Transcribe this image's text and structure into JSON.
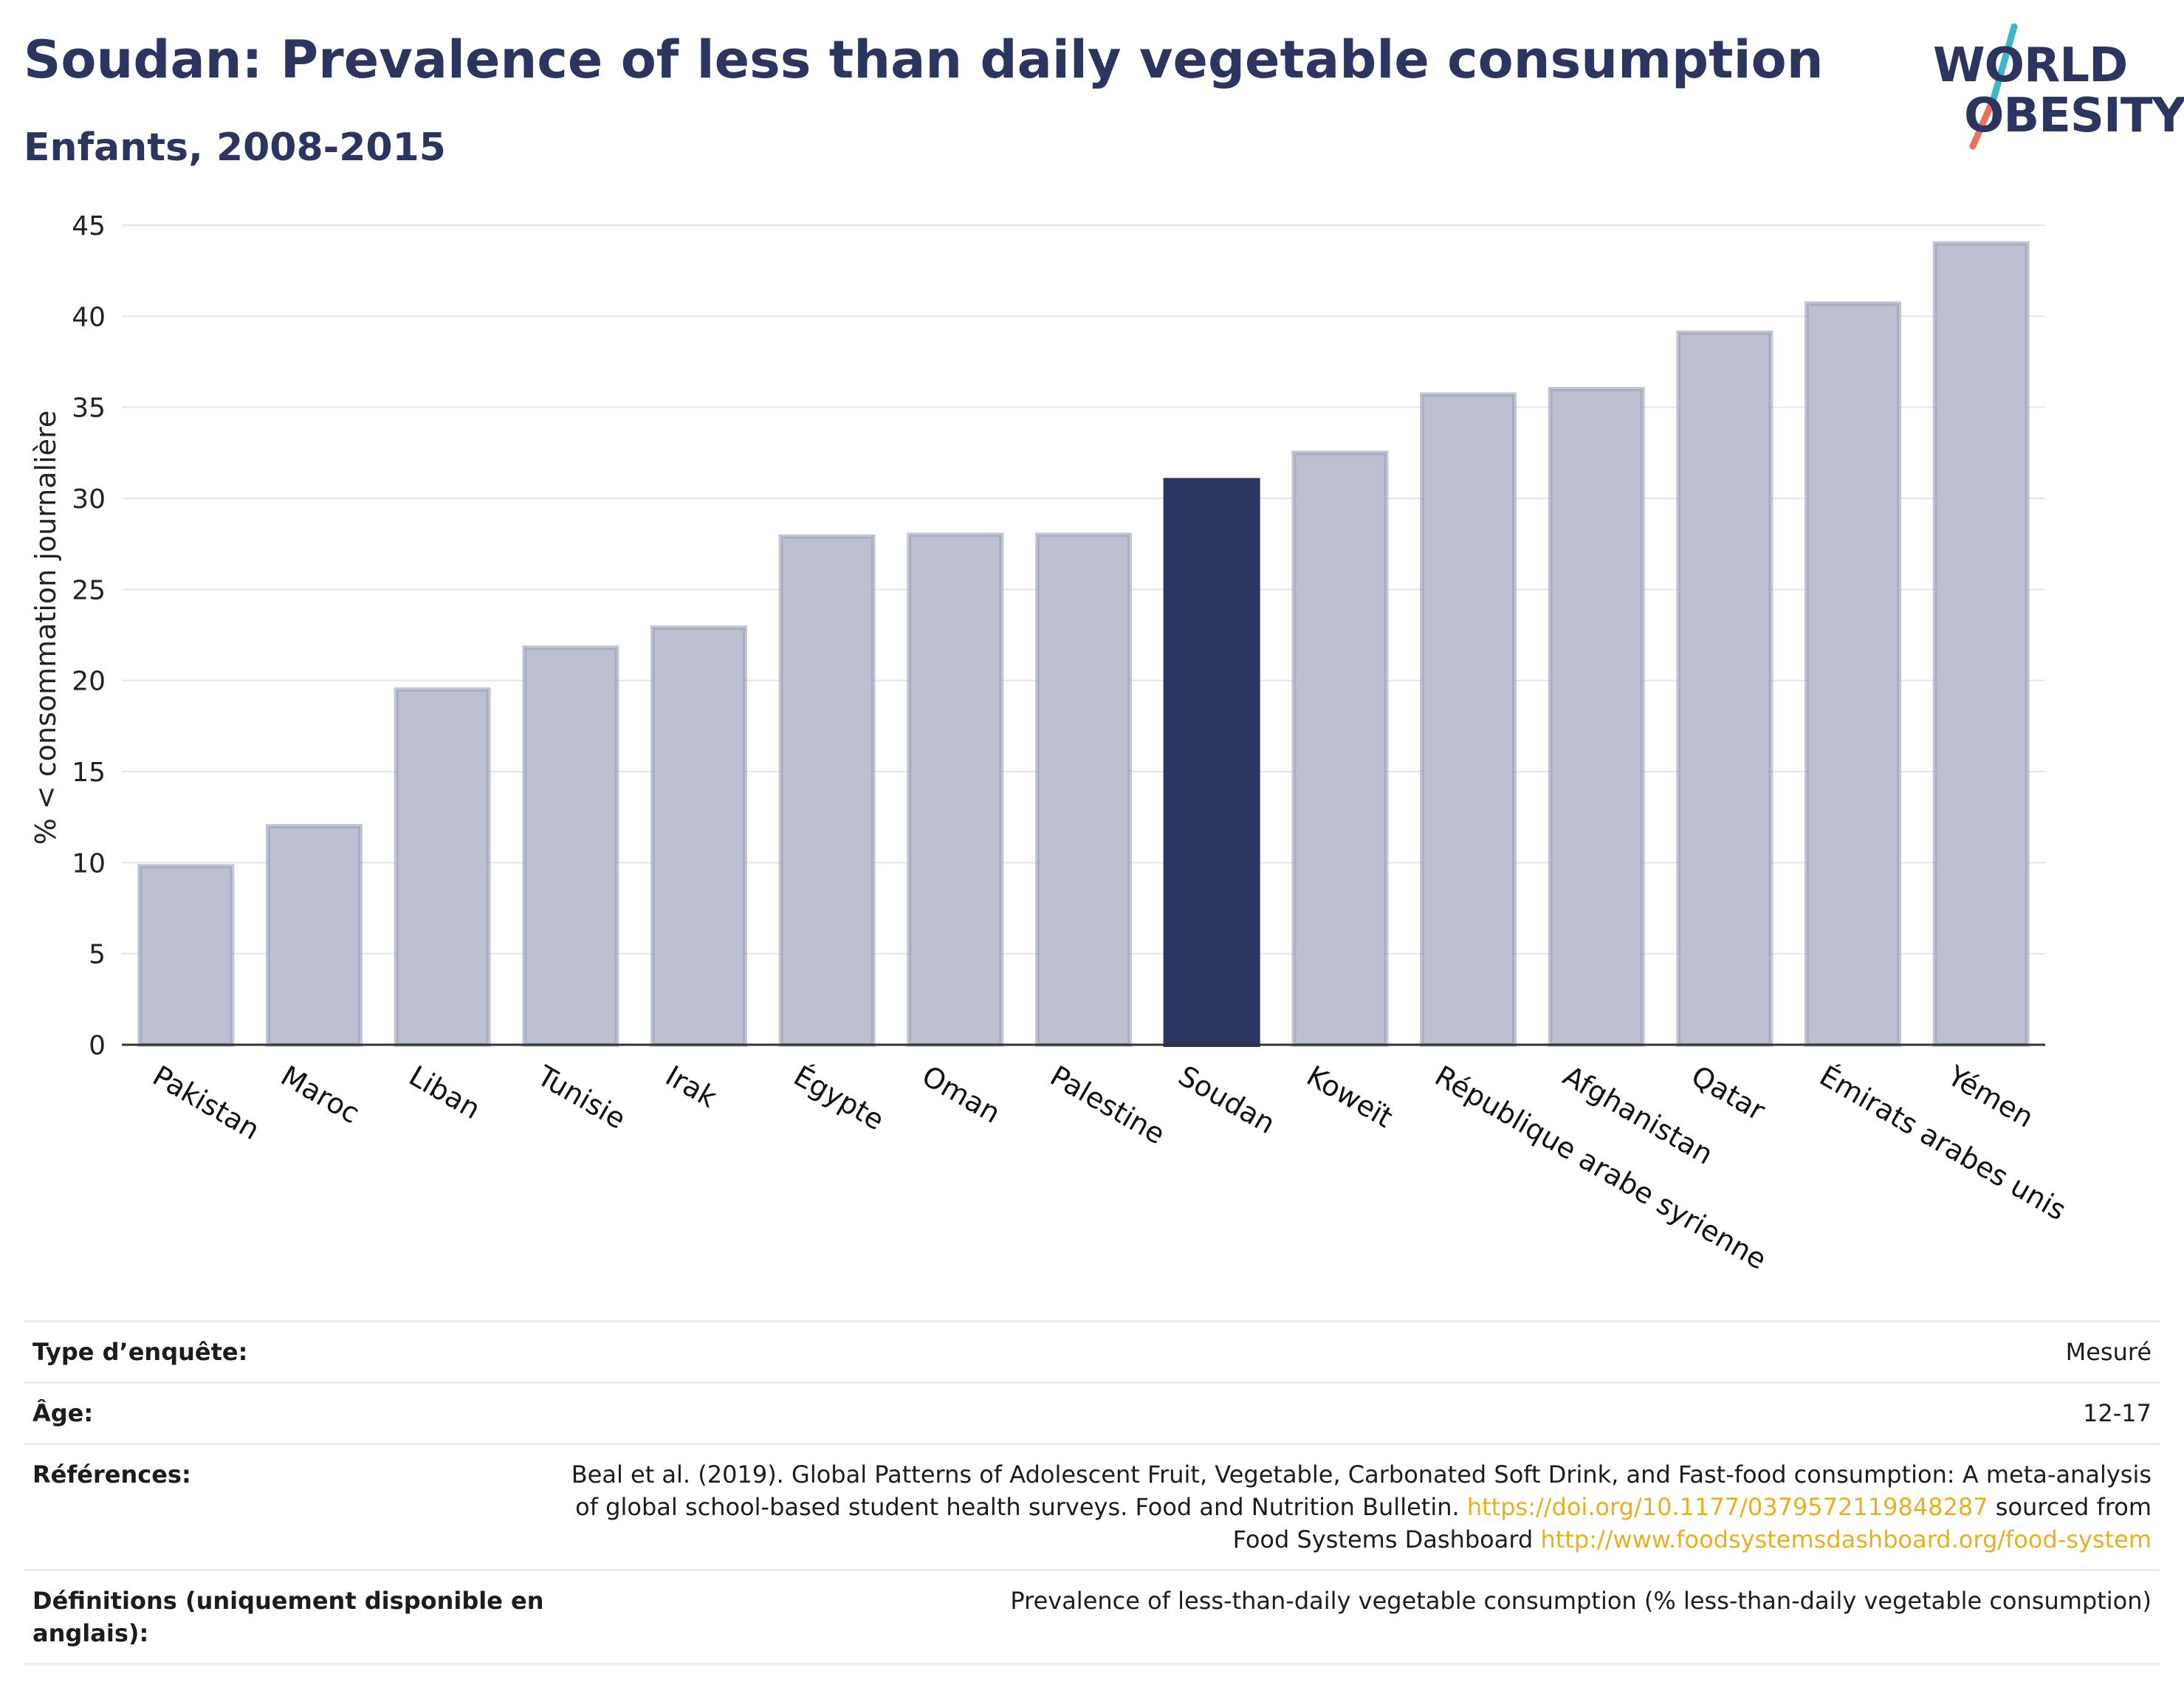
{
  "title": "Soudan: Prevalence of less than daily vegetable consumption",
  "subtitle": "Enfants, 2008-2015",
  "logo": {
    "line1": "WORLD",
    "line2": "OBESITY"
  },
  "colors": {
    "bar": "#bcc0d0",
    "bar_stroke": "#9ba1b9",
    "highlight": "#2b3560",
    "grid": "#e6e6e6",
    "axis": "#333333"
  },
  "chart_data": {
    "type": "bar",
    "ylabel": "% < consommation journalière",
    "ylim": [
      0,
      45
    ],
    "yticks": [
      0,
      5,
      10,
      15,
      20,
      25,
      30,
      35,
      40,
      45
    ],
    "grid": true,
    "highlight": "Soudan",
    "categories": [
      "Pakistan",
      "Maroc",
      "Liban",
      "Tunisie",
      "Irak",
      "Égypte",
      "Oman",
      "Palestine",
      "Soudan",
      "Koweït",
      "République arabe syrienne",
      "Afghanistan",
      "Qatar",
      "Émirats arabes unis",
      "Yémen"
    ],
    "values": [
      9.8,
      12.0,
      19.5,
      21.8,
      22.9,
      27.9,
      28.0,
      28.0,
      31.0,
      32.5,
      35.7,
      36.0,
      39.1,
      40.7,
      44.0
    ]
  },
  "table": [
    {
      "key": "Type d’enquête:",
      "value": "Mesuré"
    },
    {
      "key": "Âge:",
      "value": "12-17"
    },
    {
      "key": "Références:",
      "value": "Beal et al. (2019). Global Patterns of Adolescent Fruit, Vegetable, Carbonated Soft Drink, and Fast-food consumption: A meta-analysis of global school-based student health surveys. Food and Nutrition Bulletin.",
      "link1": "https://doi.org/10.1177/0379572119848287",
      "mid": "sourced from Food Systems Dashboard",
      "link2": "http://www.foodsystemsdashboard.org/food-system"
    },
    {
      "key": "Définitions (uniquement disponible en anglais):",
      "value": "Prevalence of less-than-daily vegetable consumption (% less-than-daily vegetable consumption)"
    }
  ]
}
